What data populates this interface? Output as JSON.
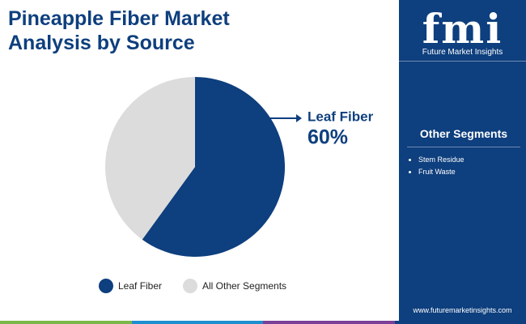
{
  "chart_data": {
    "type": "pie",
    "title": "Pineapple Fiber Market Analysis by Source",
    "categories": [
      "Leaf Fiber",
      "All Other Segments"
    ],
    "values": [
      60,
      40
    ],
    "value_labels": [
      "60%",
      null
    ],
    "colors": [
      "#0e3f7e",
      "#dcdcdc"
    ],
    "legend": "bottom"
  },
  "sidebar": {
    "logo": "fmi",
    "brand": "Future Market Insights",
    "heading": "Other Segments",
    "items": [
      "Stem Residue",
      "Fruit Waste"
    ],
    "url": "www.futuremarketinsights.com"
  }
}
